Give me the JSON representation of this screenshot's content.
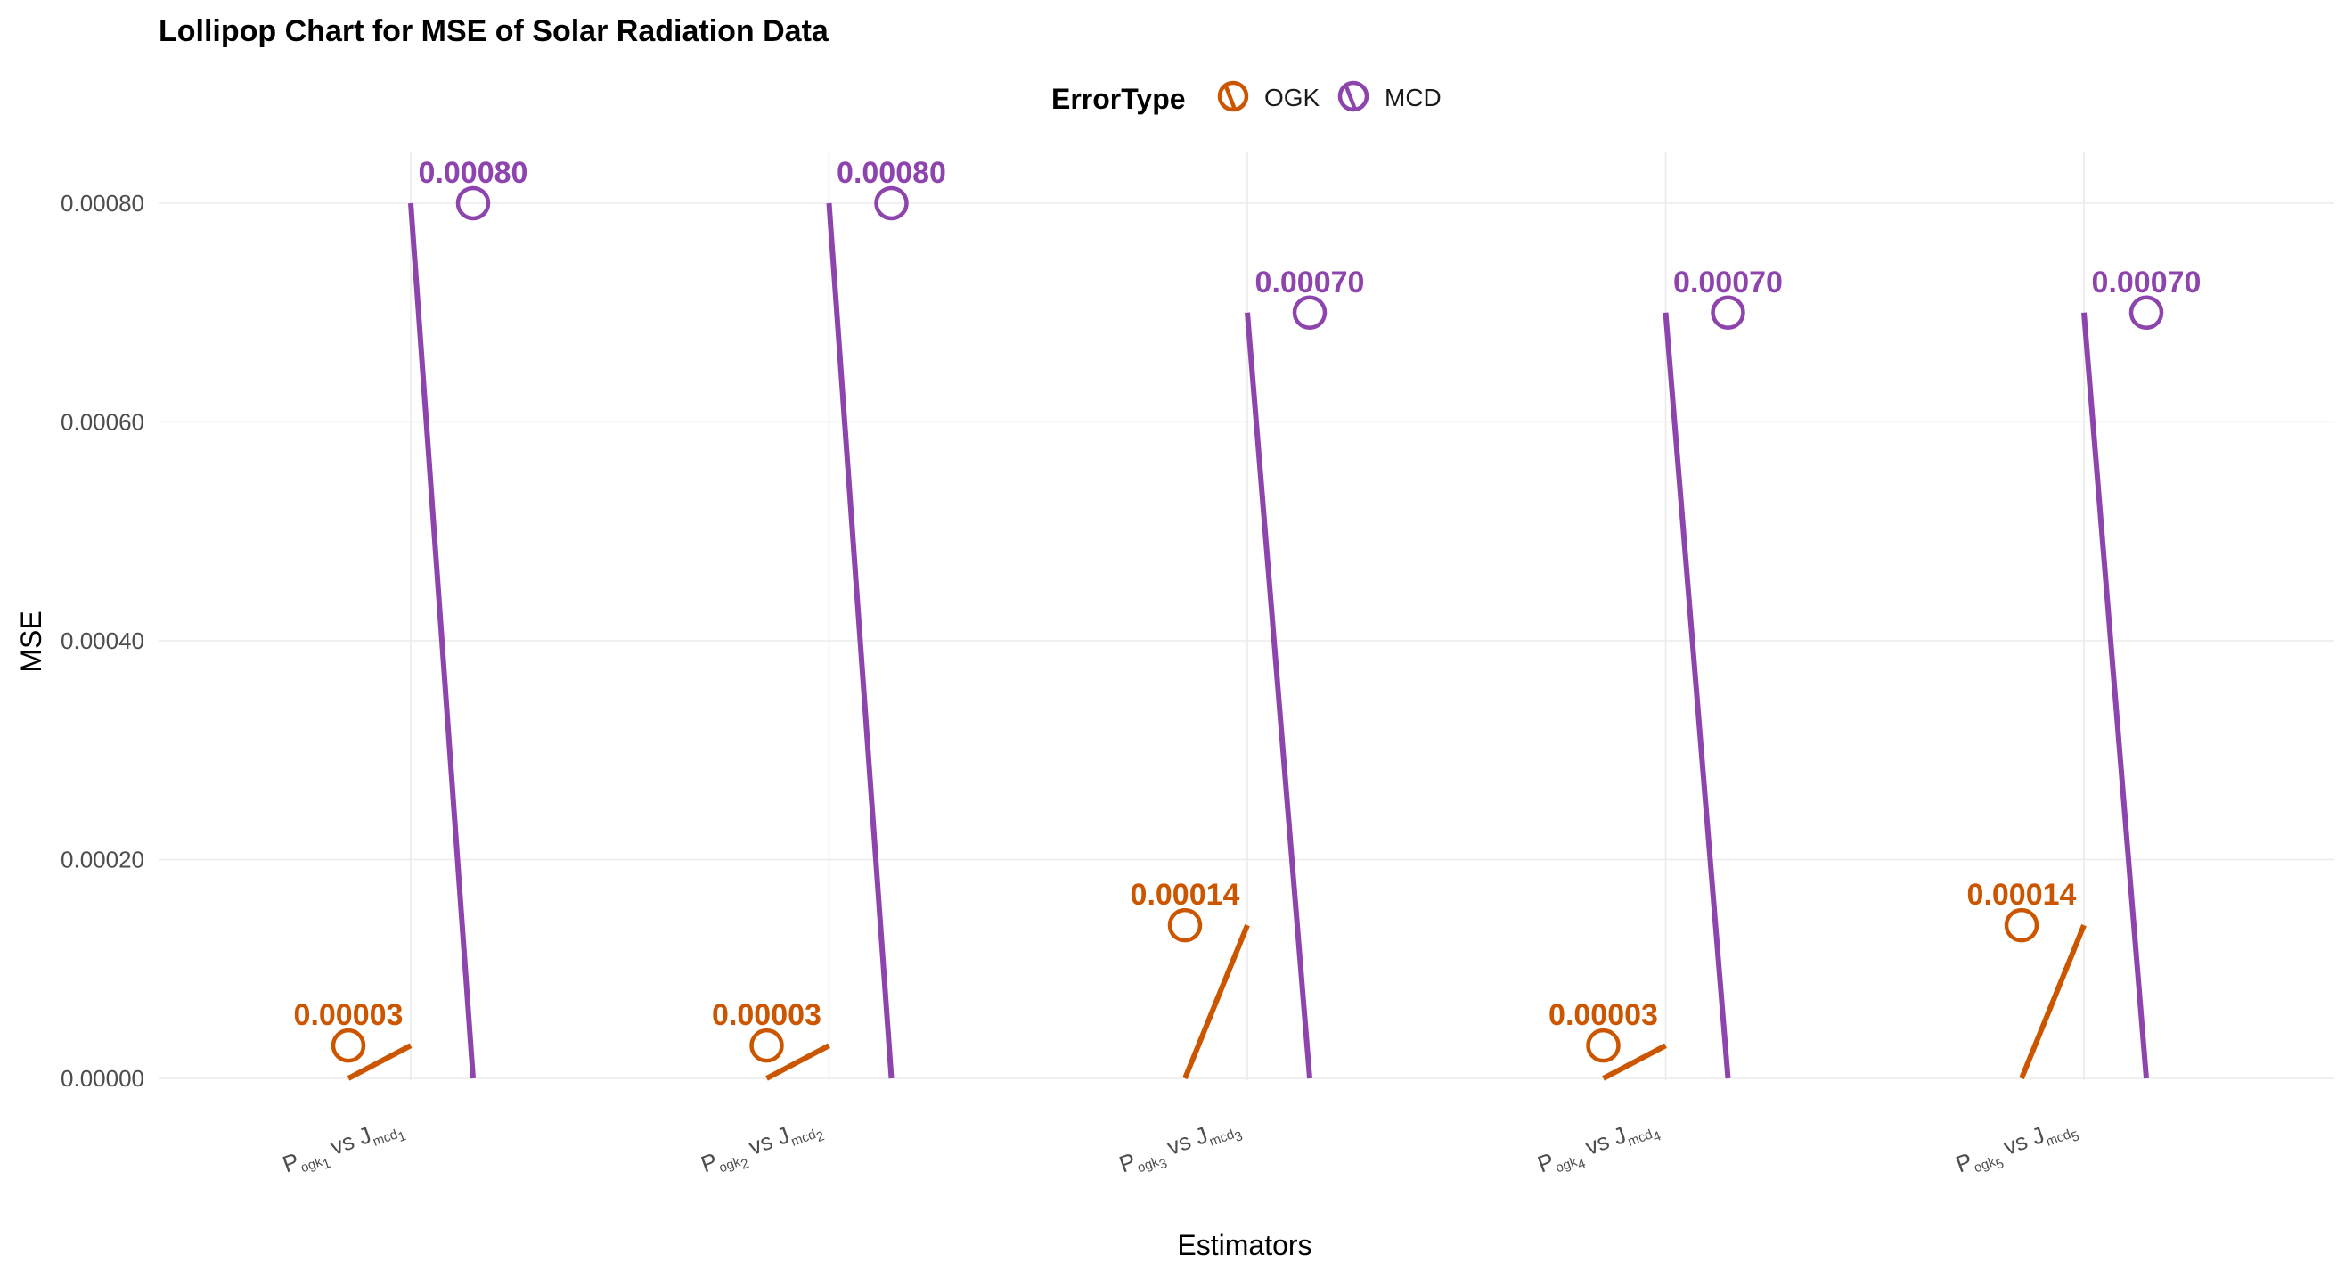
{
  "chart_data": {
    "type": "lollipop",
    "title": "Lollipop Chart for MSE of Solar Radiation Data",
    "xlabel": "Estimators",
    "ylabel": "MSE",
    "ylim": [
      0,
      0.00084
    ],
    "yticks": [
      0,
      0.0002,
      0.0004,
      0.0006,
      0.0008
    ],
    "ytick_labels": [
      "0.00000",
      "0.00020",
      "0.00040",
      "0.00060",
      "0.00080"
    ],
    "legend": {
      "title": "ErrorType",
      "position": "top",
      "entries": [
        {
          "name": "OGK",
          "color": "#CC5500"
        },
        {
          "name": "MCD",
          "color": "#8E44AD"
        }
      ]
    },
    "grid": true,
    "categories": [
      {
        "p": "P",
        "p_sub": "ogk",
        "p_idx": "1",
        "vs": "vs",
        "j": "J",
        "j_sub": "mcd",
        "j_idx": "1"
      },
      {
        "p": "P",
        "p_sub": "ogk",
        "p_idx": "2",
        "vs": "vs",
        "j": "J",
        "j_sub": "mcd",
        "j_idx": "2"
      },
      {
        "p": "P",
        "p_sub": "ogk",
        "p_idx": "3",
        "vs": "vs",
        "j": "J",
        "j_sub": "mcd",
        "j_idx": "3"
      },
      {
        "p": "P",
        "p_sub": "ogk",
        "p_idx": "4",
        "vs": "vs",
        "j": "J",
        "j_sub": "mcd",
        "j_idx": "4"
      },
      {
        "p": "P",
        "p_sub": "ogk",
        "p_idx": "5",
        "vs": "vs",
        "j": "J",
        "j_sub": "mcd",
        "j_idx": "5"
      }
    ],
    "series": [
      {
        "name": "OGK",
        "color": "#CC5500",
        "values": [
          3e-05,
          3e-05,
          0.00014,
          3e-05,
          0.00014
        ],
        "labels": [
          "0.00003",
          "0.00003",
          "0.00014",
          "0.00003",
          "0.00014"
        ]
      },
      {
        "name": "MCD",
        "color": "#8E44AD",
        "values": [
          0.0008,
          0.0008,
          0.0007,
          0.0007,
          0.0007
        ],
        "labels": [
          "0.00080",
          "0.00080",
          "0.00070",
          "0.00070",
          "0.00070"
        ]
      }
    ]
  }
}
